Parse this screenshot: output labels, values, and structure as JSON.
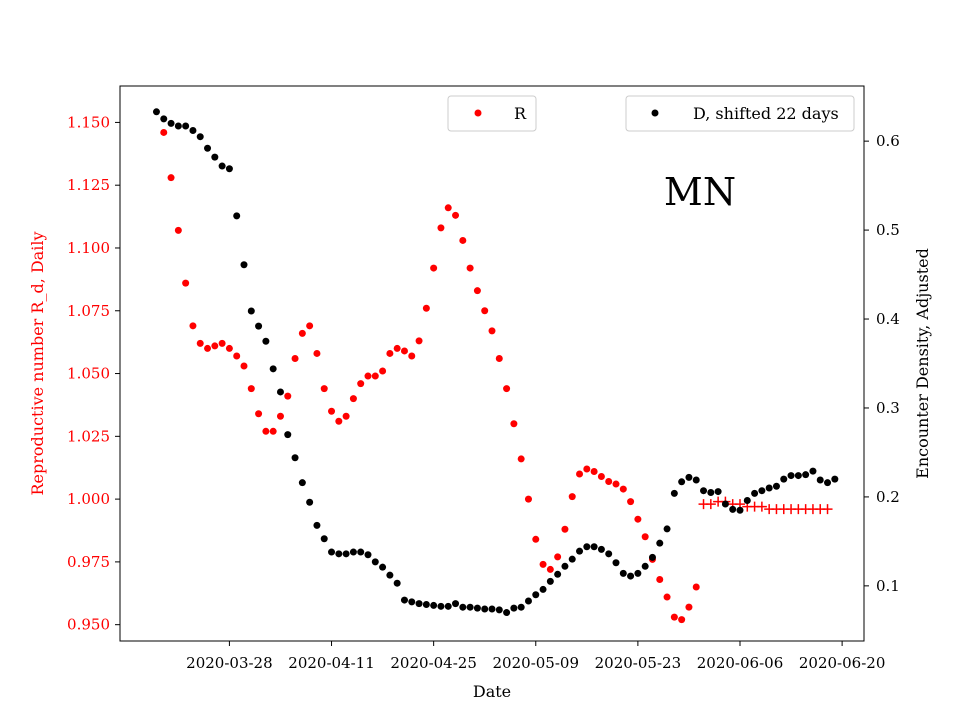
{
  "chart_data": {
    "type": "scatter",
    "annotation": "MN",
    "xlabel": "Date",
    "ylabel_left": "Reproductive number R_d, Daily",
    "ylabel_right": "Encounter Density, Adjusted",
    "x_ticks": [
      "2020-03-28",
      "2020-04-11",
      "2020-04-25",
      "2020-05-09",
      "2020-05-23",
      "2020-06-06",
      "2020-06-20"
    ],
    "y_ticks_left": [
      "0.950",
      "0.975",
      "1.000",
      "1.025",
      "1.050",
      "1.075",
      "1.100",
      "1.125",
      "1.150"
    ],
    "y_ticks_right": [
      "0.1",
      "0.2",
      "0.3",
      "0.4",
      "0.5",
      "0.6"
    ],
    "xlim": [
      "2020-03-13",
      "2020-06-23"
    ],
    "ylim_left": [
      0.9435,
      1.1645
    ],
    "ylim_right": [
      0.038,
      0.662
    ],
    "legend": [
      {
        "label": "R",
        "position": "upper-center",
        "color": "#ff0000"
      },
      {
        "label": "D, shifted 22 days",
        "position": "upper-right",
        "color": "#000000"
      }
    ],
    "colors": {
      "R": "#ff0000",
      "R_projected": "#ff0000",
      "D": "#000000",
      "left_axis": "#ff0000",
      "right_axis": "#000000"
    },
    "series": [
      {
        "name": "R",
        "axis": "left",
        "marker": "dot",
        "start_date": "2020-03-19",
        "values": [
          1.146,
          1.128,
          1.107,
          1.086,
          1.069,
          1.062,
          1.06,
          1.061,
          1.062,
          1.06,
          1.057,
          1.053,
          1.044,
          1.034,
          1.027,
          1.027,
          1.033,
          1.041,
          1.056,
          1.066,
          1.069,
          1.058,
          1.044,
          1.035,
          1.031,
          1.033,
          1.04,
          1.046,
          1.049,
          1.049,
          1.051,
          1.058,
          1.06,
          1.059,
          1.057,
          1.063,
          1.076,
          1.092,
          1.108,
          1.116,
          1.113,
          1.103,
          1.092,
          1.083,
          1.075,
          1.067,
          1.056,
          1.044,
          1.03,
          1.016,
          1.0,
          0.984,
          0.974,
          0.972,
          0.977,
          0.988,
          1.001,
          1.01,
          1.012,
          1.011,
          1.009,
          1.007,
          1.006,
          1.004,
          0.999,
          0.992,
          0.985,
          0.976,
          0.968,
          0.961,
          0.953,
          0.952,
          0.957,
          0.965
        ]
      },
      {
        "name": "R projection",
        "axis": "left",
        "marker": "plus",
        "start_date": "2020-06-01",
        "values": [
          0.998,
          0.998,
          0.999,
          0.999,
          0.998,
          0.998,
          0.997,
          0.997,
          0.997,
          0.996,
          0.996,
          0.996,
          0.996,
          0.996,
          0.996,
          0.996,
          0.996,
          0.996
        ]
      },
      {
        "name": "D",
        "axis": "right",
        "marker": "dot",
        "start_date": "2020-03-18",
        "values": [
          0.633,
          0.625,
          0.62,
          0.617,
          0.617,
          0.612,
          0.605,
          0.592,
          0.582,
          0.572,
          0.569,
          0.516,
          0.461,
          0.409,
          0.392,
          0.375,
          0.344,
          0.318,
          0.27,
          0.244,
          0.216,
          0.194,
          0.168,
          0.153,
          0.138,
          0.136,
          0.136,
          0.138,
          0.138,
          0.135,
          0.127,
          0.121,
          0.112,
          0.103,
          0.084,
          0.082,
          0.08,
          0.079,
          0.078,
          0.077,
          0.077,
          0.08,
          0.076,
          0.076,
          0.075,
          0.074,
          0.074,
          0.073,
          0.07,
          0.075,
          0.076,
          0.083,
          0.09,
          0.096,
          0.105,
          0.113,
          0.122,
          0.13,
          0.139,
          0.144,
          0.144,
          0.141,
          0.136,
          0.126,
          0.114,
          0.111,
          0.114,
          0.122,
          0.132,
          0.148,
          0.164,
          0.204,
          0.217,
          0.222,
          0.219,
          0.207,
          0.205,
          0.206,
          0.192,
          0.186,
          0.185,
          0.196,
          0.204,
          0.207,
          0.21,
          0.212,
          0.22,
          0.224,
          0.224,
          0.225,
          0.229,
          0.219,
          0.216,
          0.22
        ]
      }
    ]
  }
}
